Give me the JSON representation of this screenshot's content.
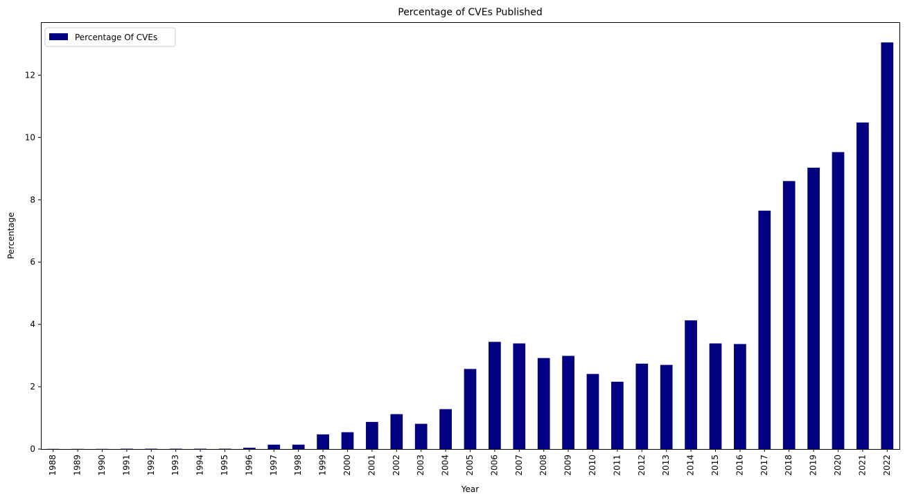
{
  "colors": {
    "bar": "#000080",
    "axis": "#000000",
    "legend_border": "#cccccc"
  },
  "chart_data": {
    "type": "bar",
    "title": "Percentage of CVEs Published",
    "xlabel": "Year",
    "ylabel": "Percentage",
    "ylim": [
      0,
      13.7
    ],
    "yticks": [
      0,
      2,
      4,
      6,
      8,
      10,
      12
    ],
    "grid": false,
    "legend_position": "top-left",
    "categories": [
      "1988",
      "1989",
      "1990",
      "1991",
      "1992",
      "1993",
      "1994",
      "1995",
      "1996",
      "1997",
      "1998",
      "1999",
      "2000",
      "2001",
      "2002",
      "2003",
      "2004",
      "2005",
      "2006",
      "2007",
      "2008",
      "2009",
      "2010",
      "2011",
      "2012",
      "2013",
      "2014",
      "2015",
      "2016",
      "2017",
      "2018",
      "2019",
      "2020",
      "2021",
      "2022"
    ],
    "series": [
      {
        "name": "Percentage Of CVEs",
        "values": [
          0.005,
          0.005,
          0.005,
          0.01,
          0.01,
          0.01,
          0.01,
          0.01,
          0.04,
          0.14,
          0.14,
          0.47,
          0.54,
          0.87,
          1.12,
          0.81,
          1.28,
          2.57,
          3.44,
          3.39,
          2.92,
          2.99,
          2.41,
          2.16,
          2.74,
          2.7,
          4.13,
          3.39,
          3.37,
          7.65,
          8.6,
          9.03,
          9.53,
          10.48,
          13.05
        ]
      }
    ]
  }
}
